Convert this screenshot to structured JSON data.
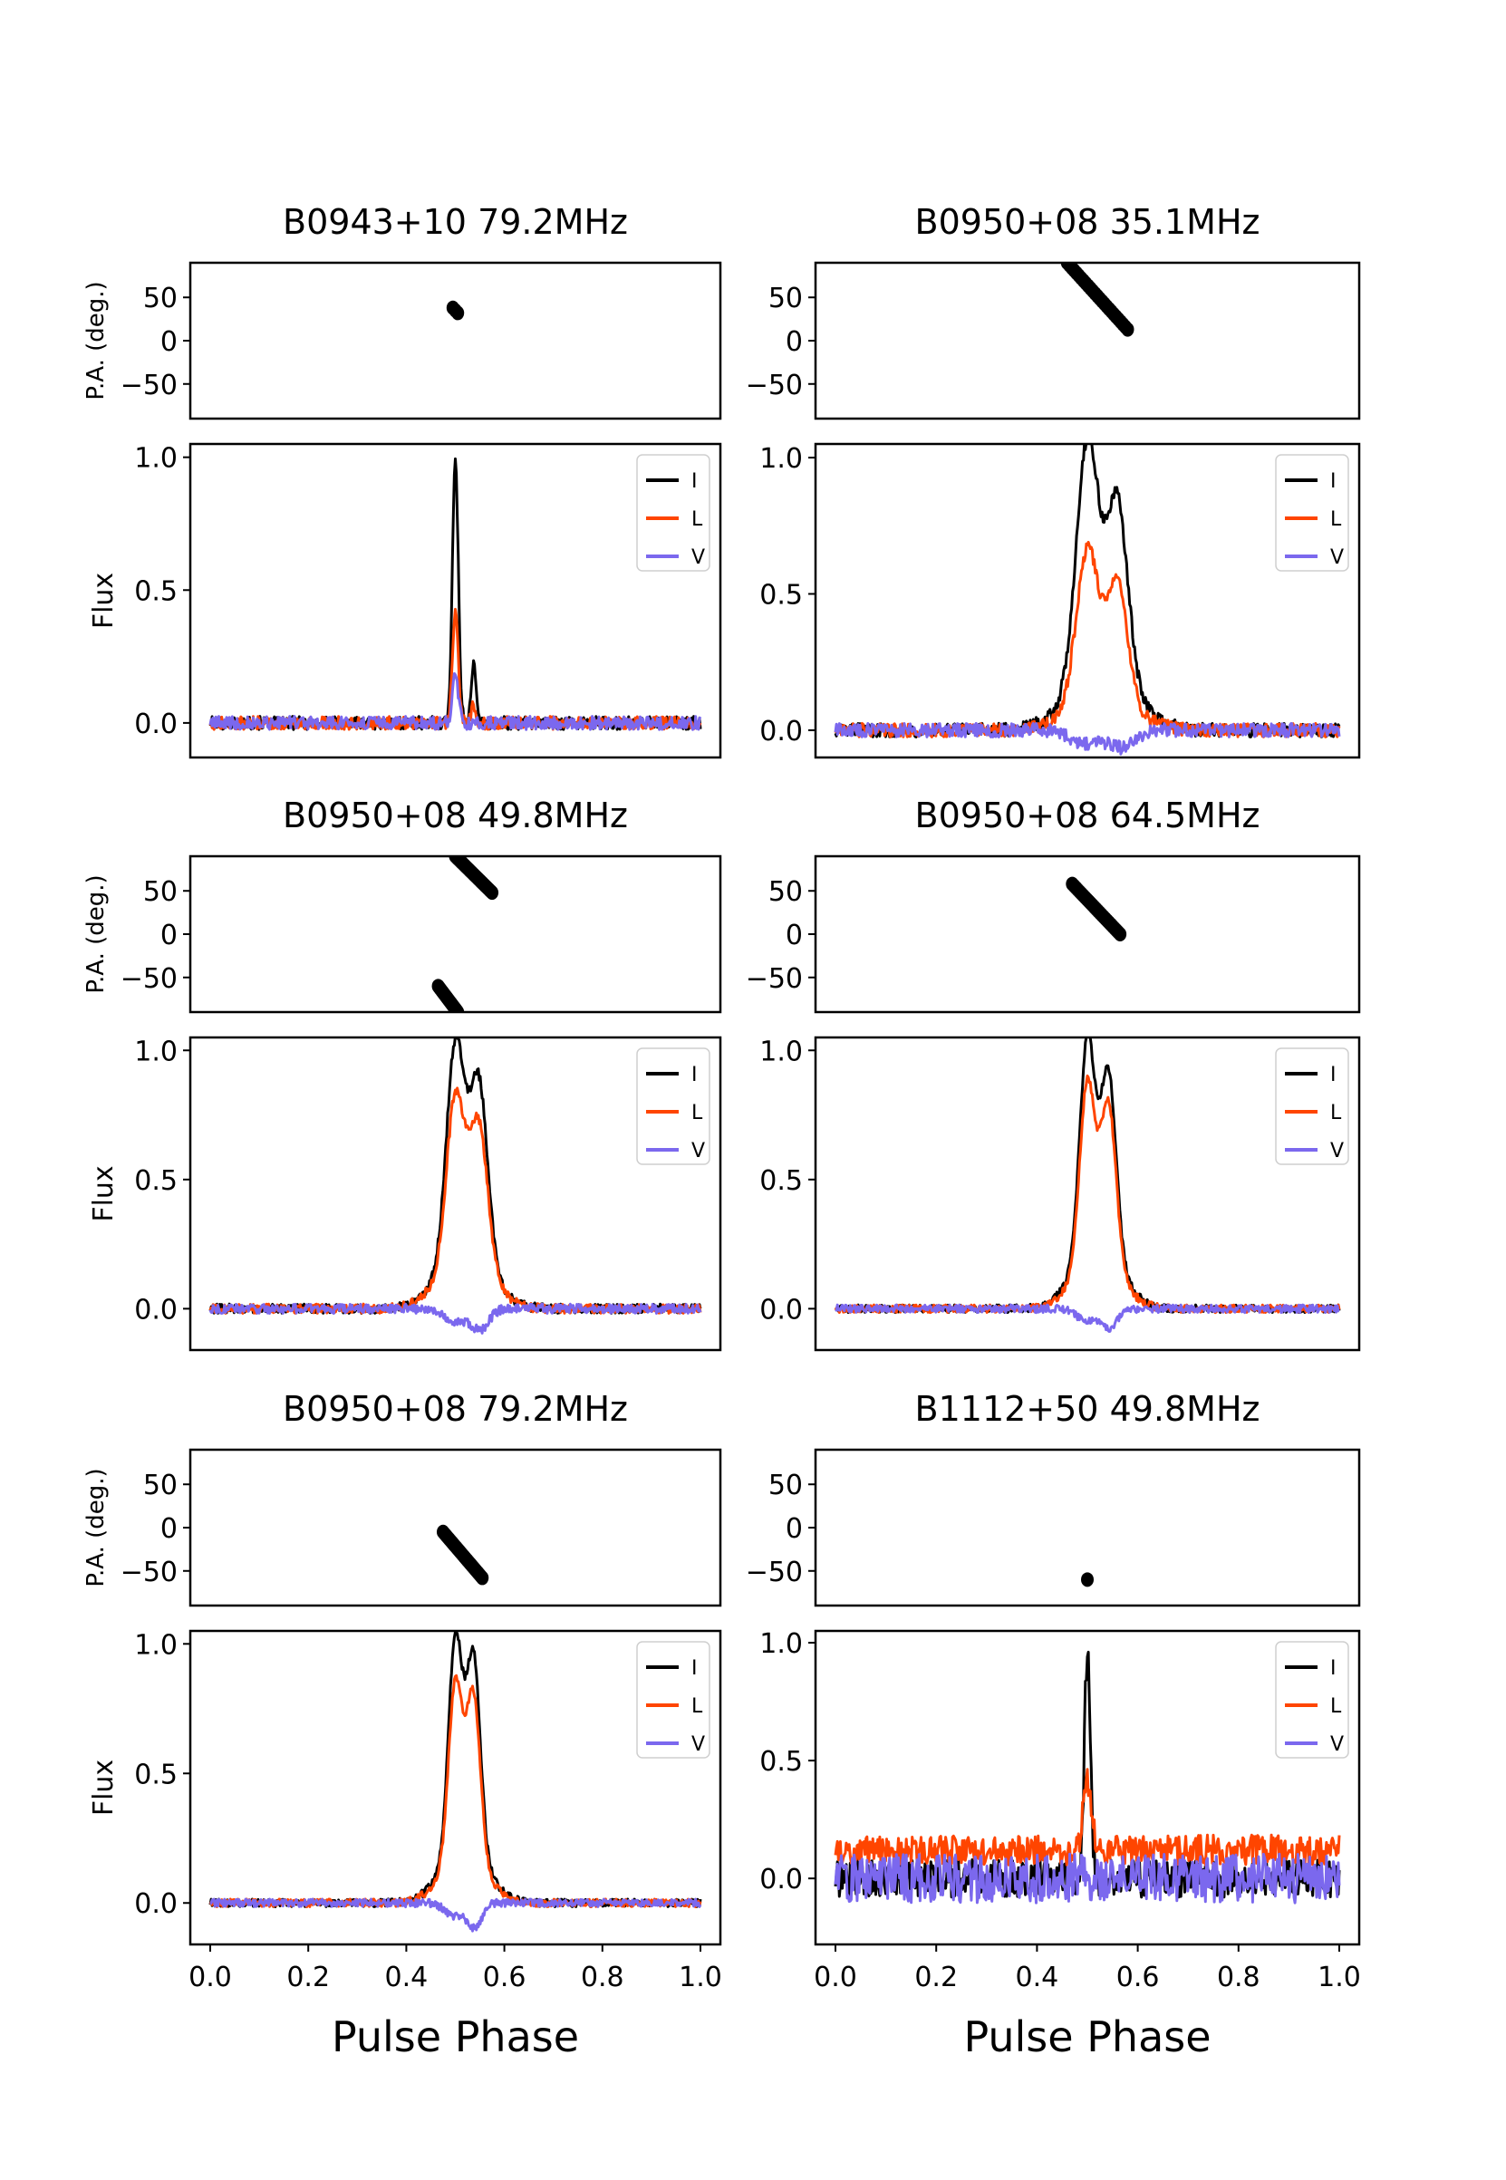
{
  "figure": {
    "xlabel": "Pulse Phase",
    "pa_ylabel": "P.A. (deg.)",
    "flux_ylabel": "Flux",
    "legend": [
      "I",
      "L",
      "V"
    ],
    "colors": {
      "I": "#000000",
      "L": "#ff4500",
      "V": "#7b68ee",
      "PA": "#000000"
    }
  },
  "chart_data": [
    {
      "type": "line",
      "title": "B0943+10 79.2MHz",
      "xlim": [
        0.0,
        1.0
      ],
      "pa": {
        "ylim": [
          -90,
          90
        ],
        "yticks": [
          50,
          0,
          -50
        ],
        "points": [
          [
            0.495,
            38
          ],
          [
            0.5,
            35
          ],
          [
            0.505,
            32
          ]
        ]
      },
      "flux": {
        "ylim": [
          -0.13,
          1.05
        ],
        "yticks": [
          1.0,
          0.5,
          0.0
        ],
        "noise": 0.025,
        "I": {
          "peaks": [
            [
              0.5,
              0.98,
              0.006
            ],
            [
              0.537,
              0.22,
              0.005
            ]
          ]
        },
        "L": {
          "peaks": [
            [
              0.5,
              0.42,
              0.006
            ],
            [
              0.537,
              0.06,
              0.005
            ]
          ]
        },
        "V": {
          "peaks": [
            [
              0.5,
              0.18,
              0.006
            ]
          ]
        }
      }
    },
    {
      "type": "line",
      "title": "B0950+08 35.1MHz",
      "xlim": [
        0.0,
        1.0
      ],
      "pa": {
        "ylim": [
          -90,
          90
        ],
        "yticks": [
          50,
          0,
          -50
        ],
        "segment": [
          [
            0.46,
            90
          ],
          [
            0.58,
            13
          ]
        ]
      },
      "flux": {
        "ylim": [
          -0.1,
          1.05
        ],
        "yticks": [
          1.0,
          0.5,
          0.0
        ],
        "noise": 0.025,
        "I": {
          "peaks": [
            [
              0.5,
              0.85,
              0.022
            ],
            [
              0.56,
              0.62,
              0.02
            ],
            [
              0.53,
              0.25,
              0.06
            ]
          ]
        },
        "L": {
          "peaks": [
            [
              0.5,
              0.55,
              0.022
            ],
            [
              0.56,
              0.43,
              0.02
            ],
            [
              0.53,
              0.13,
              0.06
            ]
          ]
        },
        "V": {
          "peaks": [
            [
              0.5,
              -0.05,
              0.03
            ],
            [
              0.57,
              -0.06,
              0.025
            ]
          ]
        }
      }
    },
    {
      "type": "line",
      "title": "B0950+08 49.8MHz",
      "xlim": [
        0.0,
        1.0
      ],
      "pa": {
        "ylim": [
          -90,
          90
        ],
        "yticks": [
          50,
          0,
          -50
        ],
        "segment": [
          [
            0.5,
            90
          ],
          [
            0.575,
            48
          ]
        ],
        "segment2": [
          [
            0.465,
            -60
          ],
          [
            0.505,
            -90
          ]
        ]
      },
      "flux": {
        "ylim": [
          -0.16,
          1.05
        ],
        "yticks": [
          1.0,
          0.5,
          0.0
        ],
        "noise": 0.018,
        "I": {
          "peaks": [
            [
              0.5,
              0.8,
              0.018
            ],
            [
              0.548,
              0.67,
              0.018
            ],
            [
              0.52,
              0.25,
              0.05
            ]
          ]
        },
        "L": {
          "peaks": [
            [
              0.5,
              0.62,
              0.018
            ],
            [
              0.548,
              0.53,
              0.018
            ],
            [
              0.52,
              0.22,
              0.05
            ]
          ]
        },
        "V": {
          "peaks": [
            [
              0.5,
              -0.05,
              0.02
            ],
            [
              0.55,
              -0.08,
              0.018
            ]
          ]
        }
      }
    },
    {
      "type": "line",
      "title": "B0950+08 64.5MHz",
      "xlim": [
        0.0,
        1.0
      ],
      "pa": {
        "ylim": [
          -90,
          90
        ],
        "yticks": [
          50,
          0,
          -50
        ],
        "segment": [
          [
            0.47,
            58
          ],
          [
            0.565,
            0
          ]
        ]
      },
      "flux": {
        "ylim": [
          -0.16,
          1.05
        ],
        "yticks": [
          1.0,
          0.5,
          0.0
        ],
        "noise": 0.015,
        "I": {
          "peaks": [
            [
              0.5,
              0.82,
              0.015
            ],
            [
              0.542,
              0.7,
              0.015
            ],
            [
              0.52,
              0.25,
              0.045
            ]
          ]
        },
        "L": {
          "peaks": [
            [
              0.5,
              0.7,
              0.015
            ],
            [
              0.542,
              0.62,
              0.015
            ],
            [
              0.52,
              0.2,
              0.045
            ]
          ]
        },
        "V": {
          "peaks": [
            [
              0.5,
              -0.05,
              0.02
            ],
            [
              0.545,
              -0.07,
              0.015
            ]
          ]
        }
      }
    },
    {
      "type": "line",
      "title": "B0950+08 79.2MHz",
      "xlim": [
        0.0,
        1.0
      ],
      "pa": {
        "ylim": [
          -90,
          90
        ],
        "yticks": [
          50,
          0,
          -50
        ],
        "segment": [
          [
            0.475,
            -5
          ],
          [
            0.555,
            -58
          ]
        ]
      },
      "flux": {
        "ylim": [
          -0.16,
          1.05
        ],
        "yticks": [
          1.0,
          0.5,
          0.0
        ],
        "noise": 0.015,
        "I": {
          "peaks": [
            [
              0.5,
              0.82,
              0.014
            ],
            [
              0.537,
              0.75,
              0.014
            ],
            [
              0.518,
              0.22,
              0.045
            ]
          ]
        },
        "L": {
          "peaks": [
            [
              0.5,
              0.68,
              0.014
            ],
            [
              0.537,
              0.64,
              0.014
            ],
            [
              0.518,
              0.18,
              0.045
            ]
          ]
        },
        "V": {
          "peaks": [
            [
              0.5,
              -0.05,
              0.02
            ],
            [
              0.54,
              -0.09,
              0.014
            ]
          ]
        }
      }
    },
    {
      "type": "line",
      "title": "B1112+50 49.8MHz",
      "xlim": [
        0.0,
        1.0
      ],
      "pa": {
        "ylim": [
          -90,
          90
        ],
        "yticks": [
          50,
          0,
          -50
        ],
        "points": [
          [
            0.5,
            -60
          ]
        ]
      },
      "flux": {
        "ylim": [
          -0.28,
          1.05
        ],
        "yticks": [
          1.0,
          0.5,
          0.0
        ],
        "noise": 0.08,
        "I": {
          "peaks": [
            [
              0.5,
              0.95,
              0.006
            ]
          ]
        },
        "L": {
          "peaks": [
            [
              0.5,
              0.3,
              0.008
            ]
          ],
          "offset": 0.12
        },
        "V": {
          "peaks": []
        }
      }
    }
  ]
}
